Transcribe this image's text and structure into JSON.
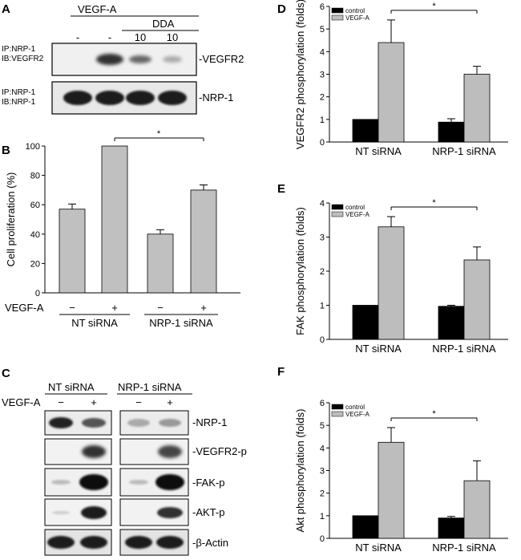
{
  "panels": {
    "A": {
      "letter": "A",
      "group_label": "VEGF-A",
      "dda_label": "DDA",
      "lane_top_labels": [
        "-",
        "-",
        "10",
        "10"
      ],
      "row1_label_line1": "IP:NRP-1",
      "row1_label_line2": "IB:VEGFR2",
      "row2_label_line1": "IP:NRP-1",
      "row2_label_line2": "IB:NRP-1",
      "band1": "-VEGFR2",
      "band2": "-NRP-1"
    },
    "B": {
      "letter": "B"
    },
    "C": {
      "letter": "C",
      "group1": "NT siRNA",
      "group2": "NRP-1 siRNA",
      "treatment_label": "VEGF-A",
      "signs": [
        "−",
        "+",
        "−",
        "+"
      ],
      "bands": [
        "-NRP-1",
        "-VEGFR2-p",
        "-FAK-p",
        "-AKT-p",
        "-β-Actin"
      ]
    },
    "D": {
      "letter": "D"
    },
    "E": {
      "letter": "E"
    },
    "F": {
      "letter": "F"
    }
  },
  "chart_data": [
    {
      "id": "B",
      "type": "bar",
      "ylabel": "Cell proliferation (%)",
      "ylim": [
        0,
        100
      ],
      "yticks": [
        0,
        20,
        40,
        60,
        80,
        100
      ],
      "treatment_label": "VEGF-A",
      "bar_signs": [
        "−",
        "+",
        "−",
        "+"
      ],
      "groups": [
        "NT siRNA",
        "NRP-1 siRNA"
      ],
      "values": [
        57,
        100,
        40,
        70
      ],
      "errors": [
        3.5,
        0,
        3,
        3.5
      ],
      "significance": "*",
      "bar_color": "#c0c0c0"
    },
    {
      "id": "D",
      "type": "bar",
      "ylabel": "VEGFR2 phosphorylation (folds)",
      "ylim": [
        0,
        6
      ],
      "yticks": [
        0,
        1,
        2,
        3,
        4,
        5,
        6
      ],
      "categories": [
        "NT siRNA",
        "NRP-1 siRNA"
      ],
      "series": [
        {
          "name": "control",
          "values": [
            1.0,
            0.88
          ],
          "errors": [
            0,
            0.15
          ],
          "color": "#000000"
        },
        {
          "name": "VEGF-A",
          "values": [
            4.4,
            3.0
          ],
          "errors": [
            1.0,
            0.35
          ],
          "color": "#bdbdbd"
        }
      ],
      "significance": "*"
    },
    {
      "id": "E",
      "type": "bar",
      "ylabel": "FAK phosphorylation (folds)",
      "ylim": [
        0,
        4
      ],
      "yticks": [
        0,
        1,
        2,
        3,
        4
      ],
      "categories": [
        "NT siRNA",
        "NRP-1 siRNA"
      ],
      "series": [
        {
          "name": "control",
          "values": [
            1.0,
            0.97
          ],
          "errors": [
            0,
            0.03
          ],
          "color": "#000000"
        },
        {
          "name": "VEGF-A",
          "values": [
            3.3,
            2.33
          ],
          "errors": [
            0.3,
            0.38
          ],
          "color": "#bdbdbd"
        }
      ],
      "significance": "*"
    },
    {
      "id": "F",
      "type": "bar",
      "ylabel": "Akt phosphorylation (folds)",
      "ylim": [
        0,
        6
      ],
      "yticks": [
        0,
        1,
        2,
        3,
        4,
        5,
        6
      ],
      "categories": [
        "NT siRNA",
        "NRP-1 siRNA"
      ],
      "series": [
        {
          "name": "control",
          "values": [
            1.0,
            0.9
          ],
          "errors": [
            0,
            0.07
          ],
          "color": "#000000"
        },
        {
          "name": "VEGF-A",
          "values": [
            4.25,
            2.55
          ],
          "errors": [
            0.65,
            0.88
          ],
          "color": "#bdbdbd"
        }
      ],
      "significance": "*"
    }
  ]
}
